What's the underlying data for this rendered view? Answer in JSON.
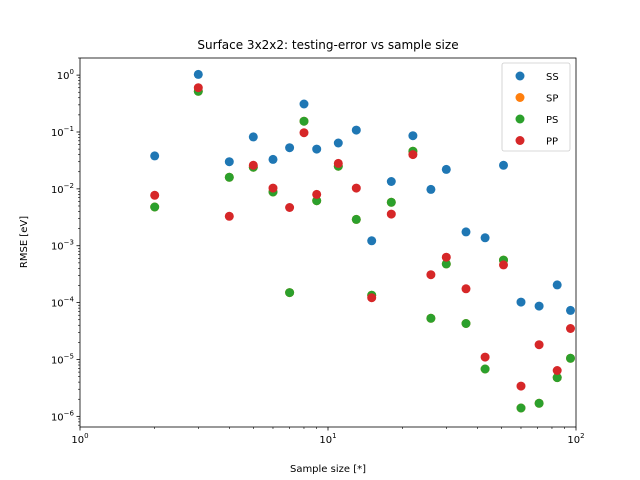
{
  "chart_data": {
    "type": "scatter",
    "title": "Surface 3x2x2: testing-error vs sample size",
    "xlabel": "Sample size [*]",
    "ylabel": "RMSE [eV]",
    "xscale": "log",
    "yscale": "log",
    "xlim": [
      1,
      100
    ],
    "ylim": [
      6.5e-07,
      2.0
    ],
    "grid": false,
    "legend_position": "top-right",
    "x_tick_labels": [
      {
        "value": 1,
        "base": "10",
        "exp": "0"
      },
      {
        "value": 10,
        "base": "10",
        "exp": "1"
      },
      {
        "value": 100,
        "base": "10",
        "exp": "2"
      }
    ],
    "y_tick_labels": [
      {
        "value": 1.0,
        "base": "10",
        "exp": "0"
      },
      {
        "value": 0.1,
        "base": "10",
        "exp": "−1"
      },
      {
        "value": 0.01,
        "base": "10",
        "exp": "−2"
      },
      {
        "value": 0.001,
        "base": "10",
        "exp": "−3"
      },
      {
        "value": 0.0001,
        "base": "10",
        "exp": "−4"
      },
      {
        "value": 1e-05,
        "base": "10",
        "exp": "−5"
      },
      {
        "value": 1e-06,
        "base": "10",
        "exp": "−6"
      }
    ],
    "series": [
      {
        "name": "SS",
        "color": "#1f77b4",
        "x": [
          2,
          3,
          4,
          5,
          6,
          7,
          8,
          9,
          11,
          13,
          15,
          18,
          22,
          26,
          30,
          36,
          43,
          51,
          60,
          71,
          84,
          95
        ],
        "y": [
          0.038,
          1.03,
          0.03,
          0.082,
          0.033,
          0.053,
          0.31,
          0.05,
          0.064,
          0.108,
          0.00122,
          0.0135,
          0.086,
          0.0098,
          0.022,
          0.00175,
          0.00138,
          0.026,
          0.000102,
          8.7e-05,
          0.000205,
          7.3e-05
        ]
      },
      {
        "name": "SP",
        "color": "#ff7f0e",
        "x": [
          2,
          3,
          4,
          5,
          6,
          7,
          8,
          9,
          11,
          13,
          15,
          18,
          22,
          26,
          30,
          36,
          43,
          51,
          60,
          71,
          84,
          95
        ],
        "y": [
          0.0048,
          0.52,
          0.016,
          0.024,
          0.0088,
          0.00015,
          0.155,
          0.0062,
          0.025,
          0.0029,
          0.000135,
          0.0058,
          0.046,
          5.3e-05,
          0.00048,
          4.3e-05,
          6.8e-06,
          0.00056,
          1.4e-06,
          1.7e-06,
          4.8e-06,
          1.05e-05
        ]
      },
      {
        "name": "PS",
        "color": "#2ca02c",
        "x": [
          2,
          3,
          4,
          5,
          6,
          7,
          8,
          9,
          11,
          13,
          15,
          18,
          22,
          26,
          30,
          36,
          43,
          51,
          60,
          71,
          84,
          95
        ],
        "y": [
          0.0048,
          0.52,
          0.016,
          0.024,
          0.0088,
          0.00015,
          0.155,
          0.0062,
          0.025,
          0.0029,
          0.000135,
          0.0058,
          0.046,
          5.3e-05,
          0.00048,
          4.3e-05,
          6.8e-06,
          0.00056,
          1.4e-06,
          1.7e-06,
          4.8e-06,
          1.05e-05
        ]
      },
      {
        "name": "PP",
        "color": "#d62728",
        "x": [
          2,
          3,
          4,
          5,
          6,
          7,
          8,
          9,
          11,
          13,
          15,
          18,
          22,
          26,
          30,
          36,
          43,
          51,
          60,
          71,
          84,
          95
        ],
        "y": [
          0.0077,
          0.6,
          0.0033,
          0.026,
          0.0103,
          0.0047,
          0.097,
          0.008,
          0.028,
          0.0103,
          0.000122,
          0.0036,
          0.04,
          0.00031,
          0.00063,
          0.000175,
          1.1e-05,
          0.00046,
          3.4e-06,
          1.82e-05,
          6.4e-06,
          3.5e-05
        ]
      }
    ]
  }
}
